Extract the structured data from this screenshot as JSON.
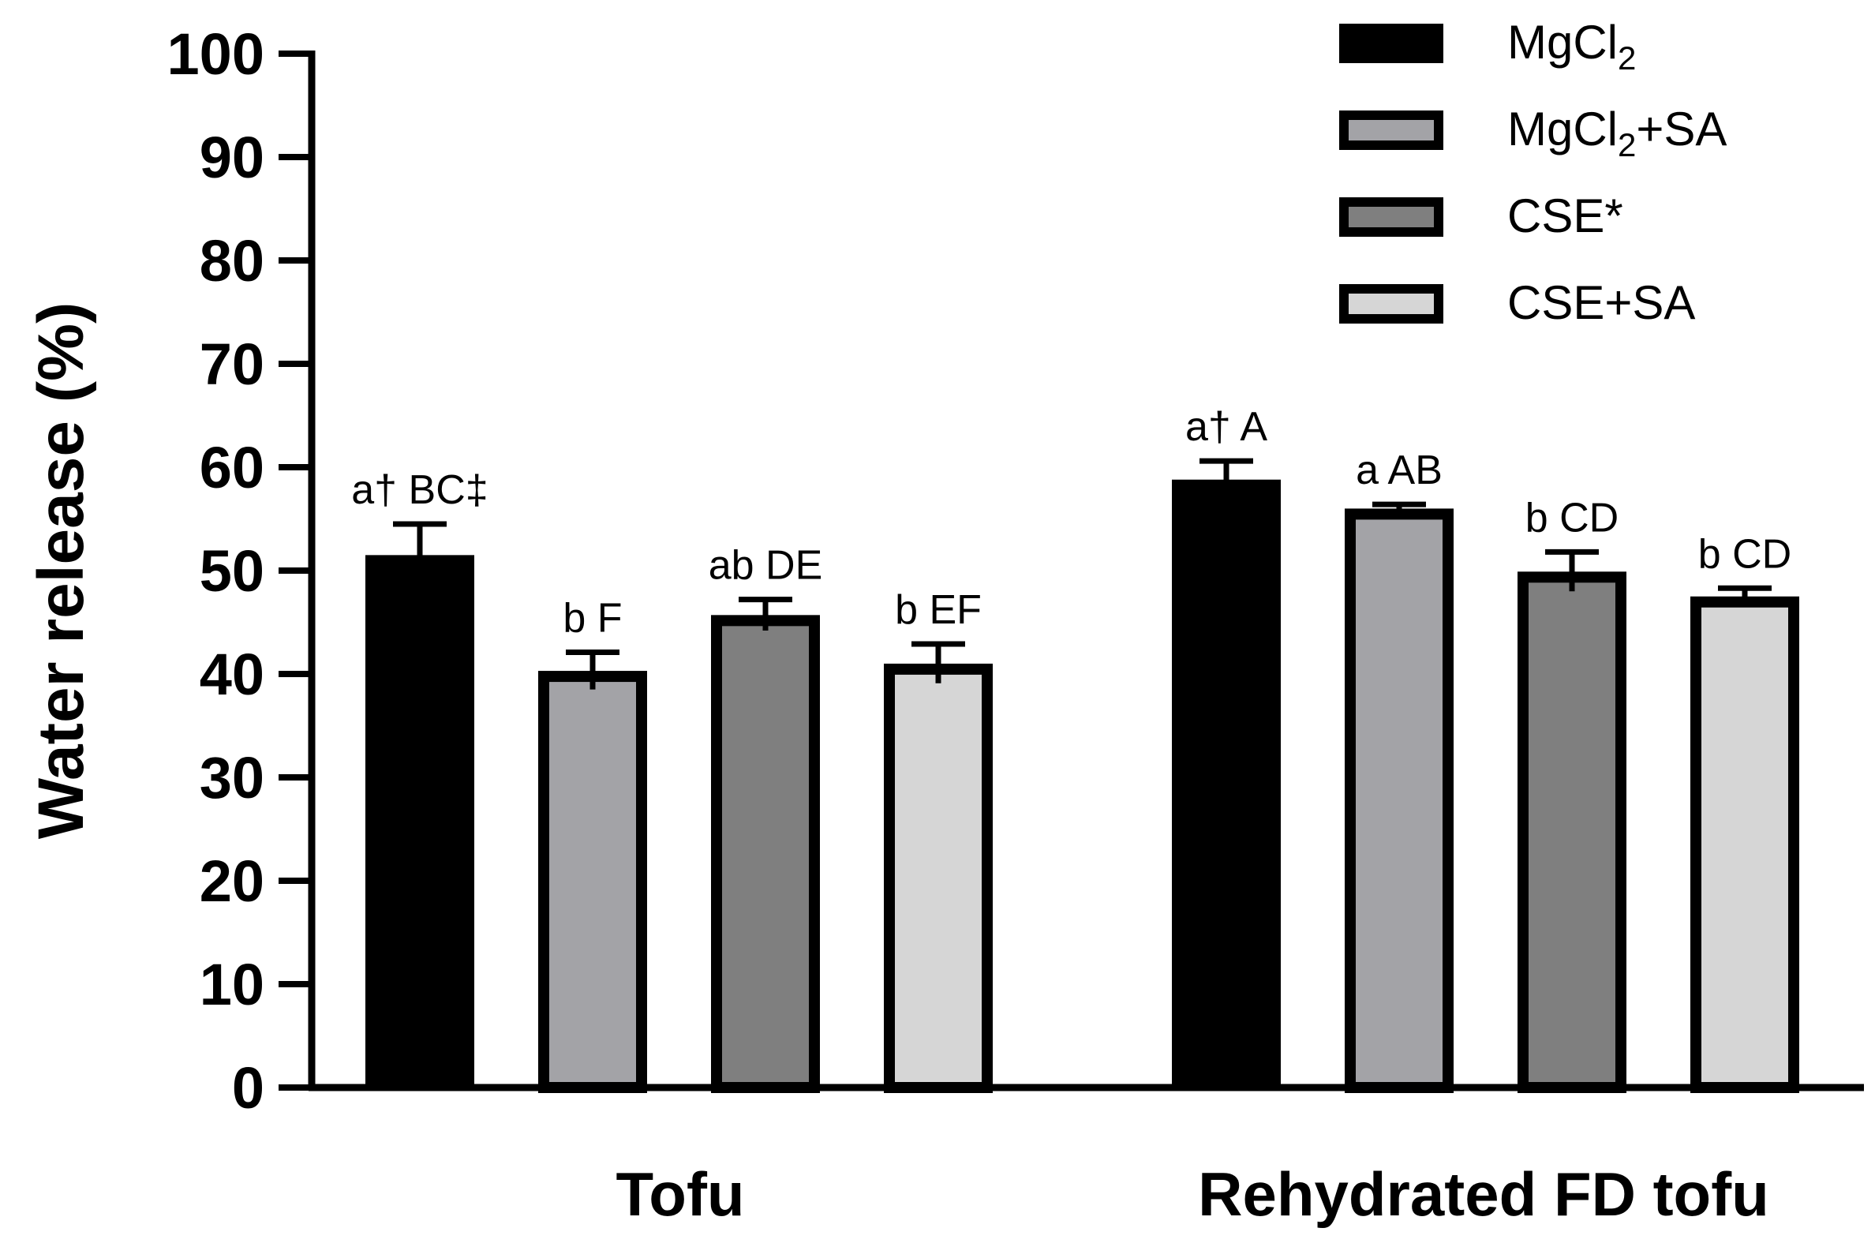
{
  "chart_data": {
    "type": "bar",
    "ylabel": "Water release (%)",
    "xlabel": "",
    "ylim": [
      0,
      100
    ],
    "yticks": [
      "0",
      "10",
      "20",
      "30",
      "40",
      "50",
      "60",
      "70",
      "80",
      "90",
      "100"
    ],
    "categories": [
      "Tofu",
      "Rehydrated FD tofu"
    ],
    "series": [
      {
        "name": "MgCl2",
        "legend_main": "MgCl",
        "legend_sub": "2",
        "legend_tail": "",
        "color": "#000000",
        "values": [
          51.5,
          58.8
        ],
        "errors": [
          3.0,
          1.8
        ],
        "labels": [
          "a† BC‡",
          "a† A"
        ]
      },
      {
        "name": "MgCl2+SA",
        "legend_main": "MgCl",
        "legend_sub": "2",
        "legend_tail": "+SA",
        "color": "#a3a3a7",
        "values": [
          40.3,
          56.0
        ],
        "errors": [
          1.8,
          0.4
        ],
        "labels": [
          "b F",
          "a AB"
        ]
      },
      {
        "name": "CSE*",
        "legend_main": "CSE*",
        "legend_sub": "",
        "legend_tail": "",
        "color": "#7f7f7f",
        "values": [
          45.7,
          49.9
        ],
        "errors": [
          1.5,
          1.9
        ],
        "labels": [
          "ab DE",
          "b CD"
        ]
      },
      {
        "name": "CSE+SA",
        "legend_main": "CSE+SA",
        "legend_sub": "",
        "legend_tail": "",
        "color": "#d6d6d6",
        "values": [
          41.0,
          47.5
        ],
        "errors": [
          1.9,
          0.8
        ],
        "labels": [
          "b EF",
          "b CD"
        ]
      }
    ]
  }
}
